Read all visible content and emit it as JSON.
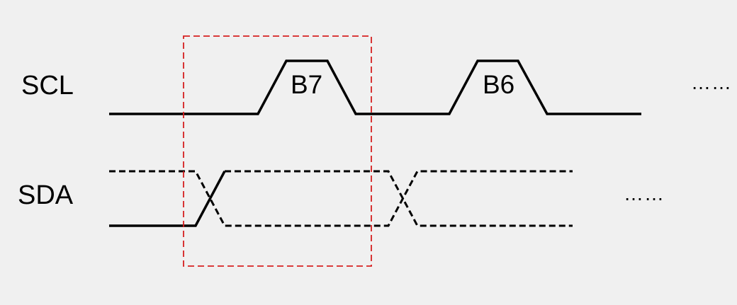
{
  "signals": {
    "scl_label": "SCL",
    "sda_label": "SDA"
  },
  "bits": [
    {
      "label": "B7"
    },
    {
      "label": "B6"
    }
  ],
  "continuation": {
    "scl": "……",
    "sda": "……"
  },
  "colors": {
    "line": "#000000",
    "highlight": "#d62020",
    "background": "#f0f0f0"
  }
}
